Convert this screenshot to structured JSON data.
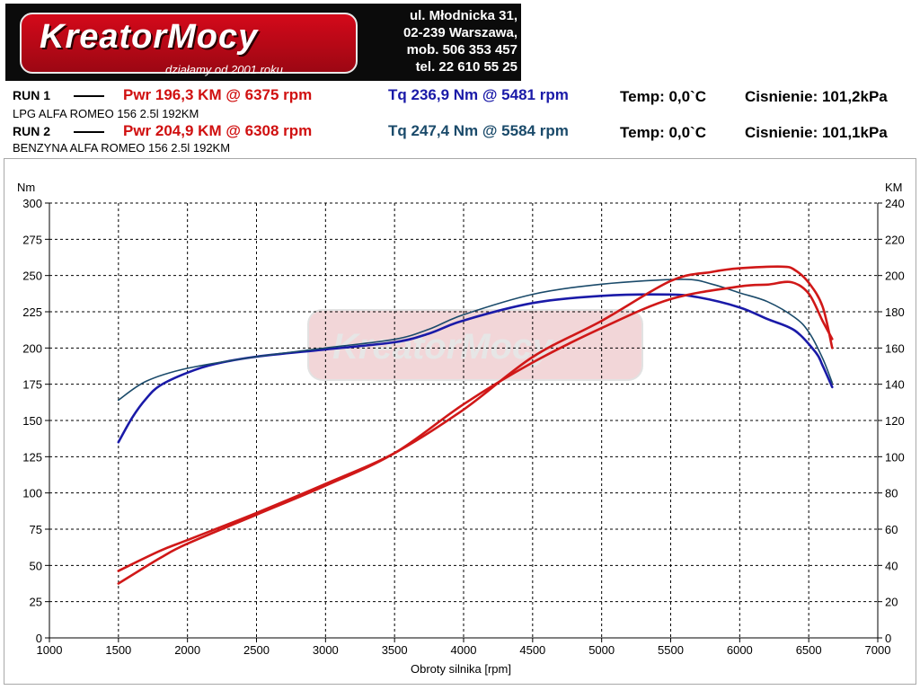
{
  "logo": {
    "brand": "KreatorMocy",
    "tagline": "działamy od 2001 roku",
    "address_lines": [
      "ul. Młodnicka 31,",
      "02-239  Warszawa,",
      "mob.  506 353 457",
      "tel.  22 610 55 25"
    ]
  },
  "runs": [
    {
      "label": "RUN 1",
      "pwr": "Pwr  196,3 KM @ 6375 rpm",
      "tq": "Tq 236,9 Nm @ 5481 rpm",
      "tq_color": "#1a1aa8",
      "temp": "Temp: 0,0`C",
      "press": "Cisnienie: 101,2kPa",
      "desc": "LPG ALFA ROMEO 156 2.5l 192KM"
    },
    {
      "label": "RUN 2",
      "pwr": "Pwr  204,9 KM @ 6308 rpm",
      "tq": "Tq 247,4 Nm @ 5584 rpm",
      "tq_color": "#1a4a6a",
      "temp": "Temp: 0,0`C",
      "press": "Cisnienie: 101,1kPa",
      "desc": "BENZYNA ALFA ROMEO 156 2.5l 192KM"
    }
  ],
  "colors": {
    "torque_run1": "#1a1aa8",
    "torque_run2": "#1a4a6a",
    "power_run1": "#d01818",
    "power_run2": "#d01818"
  },
  "chart_data": {
    "type": "line",
    "xlabel": "Obroty silnika [rpm]",
    "ylabel_left": "Nm",
    "ylabel_right": "KM",
    "xlim": [
      1000,
      7000
    ],
    "xticks": [
      1000,
      1500,
      2000,
      2500,
      3000,
      3500,
      4000,
      4500,
      5000,
      5500,
      6000,
      6500,
      7000
    ],
    "ylim_left": [
      0,
      300
    ],
    "yticks_left": [
      0,
      25,
      50,
      75,
      100,
      125,
      150,
      175,
      200,
      225,
      250,
      275,
      300
    ],
    "ylim_right": [
      0,
      240
    ],
    "yticks_right": [
      0,
      20,
      40,
      60,
      80,
      100,
      120,
      140,
      160,
      180,
      200,
      220,
      240
    ],
    "grid": true,
    "series": [
      {
        "axis": "left",
        "x": [
          1500,
          1600,
          1700,
          1800,
          2000,
          2200,
          2500,
          3000,
          3500,
          3750,
          4000,
          4500,
          5000,
          5481,
          5700,
          6000,
          6200,
          6400,
          6550,
          6600,
          6670
        ],
        "y": [
          135,
          152,
          165,
          174,
          183,
          189,
          194,
          199,
          204,
          210,
          219,
          231,
          236,
          236.9,
          235,
          228,
          220,
          212,
          197,
          188,
          173
        ]
      },
      {
        "axis": "left",
        "x": [
          1500,
          1700,
          2000,
          2500,
          3000,
          3500,
          3750,
          4000,
          4500,
          5000,
          5584,
          5800,
          6000,
          6200,
          6400,
          6500,
          6600,
          6670
        ],
        "y": [
          164,
          177,
          186,
          194,
          200,
          206,
          213,
          223,
          237,
          244,
          247.4,
          244,
          238,
          232,
          221,
          211,
          193,
          176
        ]
      },
      {
        "axis": "right",
        "x": [
          1500,
          1800,
          2000,
          2500,
          3000,
          3500,
          4000,
          4500,
          5000,
          5500,
          6000,
          6200,
          6375,
          6500,
          6600,
          6670
        ],
        "y": [
          30,
          44,
          52,
          68,
          84,
          102,
          129,
          152,
          171,
          187,
          194,
          195,
          196.3,
          190,
          175,
          165
        ]
      },
      {
        "axis": "right",
        "x": [
          1500,
          1800,
          2000,
          2500,
          3000,
          3500,
          4000,
          4500,
          5000,
          5500,
          5800,
          6000,
          6308,
          6400,
          6500,
          6600,
          6670
        ],
        "y": [
          37,
          48,
          54,
          69,
          85,
          102,
          126,
          155,
          175,
          197,
          202,
          204,
          204.9,
          203,
          196,
          183,
          160
        ]
      }
    ]
  }
}
